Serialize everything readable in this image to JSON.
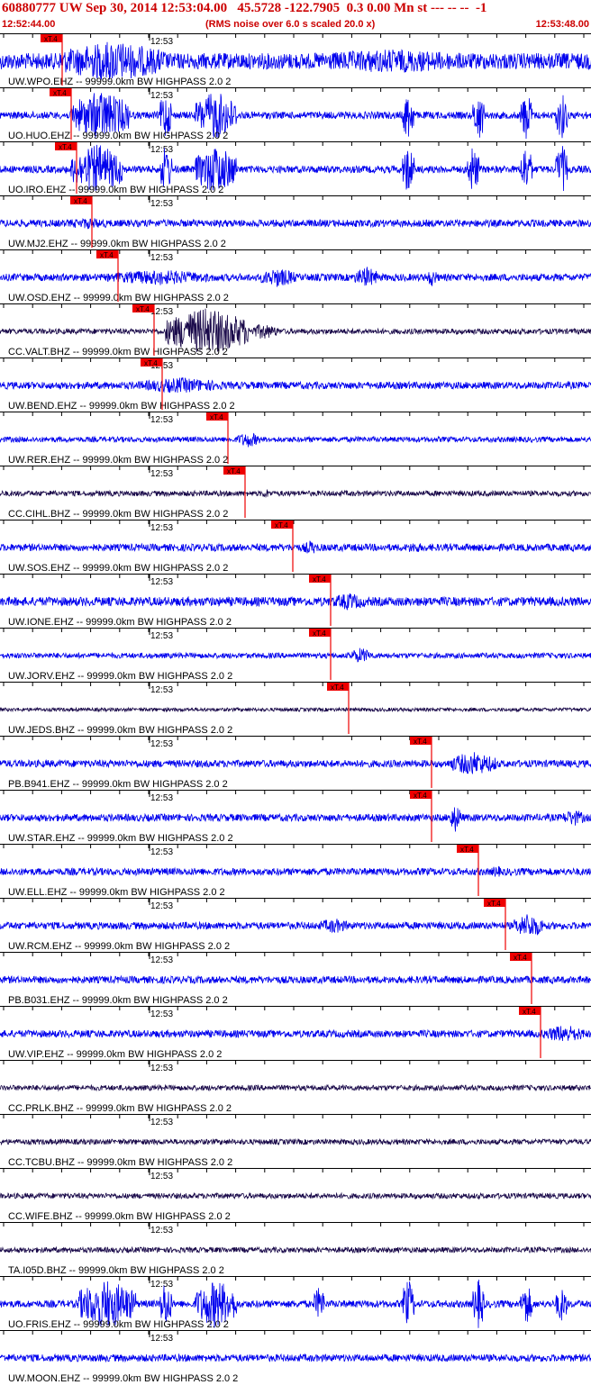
{
  "header": {
    "title": "60880777 UW Sep 30, 2014 12:53:04.00   45.5728 -122.7905  0.3 0.00 Mn st --- -- --  -1",
    "start_time": "12:52:44.00",
    "rms_note": "(RMS noise over 6.0 s scaled 20.0 x)",
    "end_time": "12:53:48.00",
    "minute_label": "12:53",
    "pick_label": "xT.4"
  },
  "colors": {
    "header_text": "#cc0000",
    "trace_blue": "#0000ee",
    "trace_dark": "#1a0a4a",
    "pick": "#ee0000",
    "axis": "#000000"
  },
  "traces": [
    {
      "label": "UW.WPO.EHZ -- 99999.0km BW  HIGHPASS  2.0  2",
      "pick": 0.105,
      "color": "blue",
      "amp": 9,
      "bursts": [
        [
          0.1,
          0.28,
          2.6
        ],
        [
          0.47,
          0.85,
          1.5
        ]
      ]
    },
    {
      "label": "UO.HUO.EHZ -- 99999.0km BW  HIGHPASS  2.0  2",
      "pick": 0.12,
      "color": "blue",
      "amp": 4,
      "bursts": [
        [
          0.12,
          0.22,
          7
        ],
        [
          0.27,
          0.29,
          7
        ],
        [
          0.33,
          0.4,
          7
        ],
        [
          0.68,
          0.7,
          7
        ],
        [
          0.8,
          0.82,
          7
        ],
        [
          0.88,
          0.9,
          7
        ],
        [
          0.94,
          0.96,
          7
        ]
      ]
    },
    {
      "label": "UO.IRO.EHZ -- 99999.0km BW  HIGHPASS  2.0  2",
      "pick": 0.13,
      "color": "blue",
      "amp": 4,
      "bursts": [
        [
          0.12,
          0.21,
          7
        ],
        [
          0.27,
          0.29,
          7
        ],
        [
          0.33,
          0.4,
          7
        ],
        [
          0.68,
          0.7,
          7
        ],
        [
          0.79,
          0.81,
          7
        ],
        [
          0.88,
          0.9,
          7
        ],
        [
          0.94,
          0.96,
          7
        ]
      ]
    },
    {
      "label": "UW.MJ2.EHZ -- 99999.0km BW  HIGHPASS  2.0  2",
      "pick": 0.155,
      "color": "blue",
      "amp": 4,
      "bursts": [
        [
          0.1,
          0.2,
          1.6
        ]
      ]
    },
    {
      "label": "UW.OSD.EHZ -- 99999.0km BW  HIGHPASS  2.0  2",
      "pick": 0.2,
      "color": "blue",
      "amp": 4,
      "bursts": [
        [
          0.18,
          0.36,
          2.2
        ],
        [
          0.44,
          0.5,
          2.8
        ],
        [
          0.6,
          0.64,
          3.0
        ],
        [
          0.72,
          0.74,
          2.6
        ]
      ]
    },
    {
      "label": "CC.VALT.BHZ -- 99999.0km BW  HIGHPASS  2.0  2",
      "pick": 0.26,
      "color": "dark",
      "amp": 3,
      "bursts": [
        [
          0.28,
          0.42,
          9
        ],
        [
          0.42,
          0.47,
          3
        ]
      ]
    },
    {
      "label": "UW.BEND.EHZ -- 99999.0km BW  HIGHPASS  2.0  2",
      "pick": 0.275,
      "color": "blue",
      "amp": 4,
      "bursts": [
        [
          0.23,
          0.38,
          2.2
        ]
      ]
    },
    {
      "label": "UW.RER.EHZ -- 99999.0km BW  HIGHPASS  2.0  2",
      "pick": 0.385,
      "color": "blue",
      "amp": 3,
      "bursts": [
        [
          0.4,
          0.44,
          3.0
        ]
      ]
    },
    {
      "label": "CC.CIHL.BHZ -- 99999.0km BW  HIGHPASS  2.0  2",
      "pick": 0.415,
      "color": "dark",
      "amp": 3,
      "bursts": [
        [
          0.44,
          0.46,
          1.8
        ]
      ]
    },
    {
      "label": "UW.SOS.EHZ -- 99999.0km BW  HIGHPASS  2.0  2",
      "pick": 0.495,
      "color": "blue",
      "amp": 4,
      "bursts": [
        [
          0.51,
          0.54,
          2.0
        ],
        [
          0.68,
          0.72,
          1.6
        ]
      ]
    },
    {
      "label": "UW.IONE.EHZ -- 99999.0km BW  HIGHPASS  2.0  2",
      "pick": 0.56,
      "color": "blue",
      "amp": 5,
      "bursts": [
        [
          0.56,
          0.62,
          2.0
        ]
      ]
    },
    {
      "label": "UW.JORV.EHZ -- 99999.0km BW  HIGHPASS  2.0  2",
      "pick": 0.56,
      "color": "blue",
      "amp": 3,
      "bursts": [
        [
          0.59,
          0.63,
          3.0
        ]
      ]
    },
    {
      "label": "UW.JEDS.BHZ -- 99999.0km BW  HIGHPASS  2.0  2",
      "pick": 0.59,
      "color": "dark",
      "amp": 2,
      "bursts": []
    },
    {
      "label": "PB.B941.EHZ -- 99999.0km BW  HIGHPASS  2.0  2",
      "pick": 0.73,
      "color": "blue",
      "amp": 4,
      "bursts": [
        [
          0.76,
          0.84,
          3.4
        ]
      ]
    },
    {
      "label": "UW.STAR.EHZ -- 99999.0km BW  HIGHPASS  2.0  2",
      "pick": 0.73,
      "color": "blue",
      "amp": 4,
      "bursts": [
        [
          0.76,
          0.78,
          4.0
        ],
        [
          0.95,
          0.99,
          2.4
        ]
      ]
    },
    {
      "label": "UW.ELL.EHZ -- 99999.0km BW  HIGHPASS  2.0  2",
      "pick": 0.81,
      "color": "blue",
      "amp": 4,
      "bursts": [
        [
          0.83,
          0.85,
          1.8
        ]
      ]
    },
    {
      "label": "UW.RCM.EHZ -- 99999.0km BW  HIGHPASS  2.0  2",
      "pick": 0.855,
      "color": "blue",
      "amp": 4,
      "bursts": [
        [
          0.54,
          0.59,
          2.2
        ],
        [
          0.87,
          0.92,
          3.6
        ]
      ]
    },
    {
      "label": "PB.B031.EHZ -- 99999.0km BW  HIGHPASS  2.0  2",
      "pick": 0.9,
      "color": "blue",
      "amp": 4,
      "bursts": []
    },
    {
      "label": "UW.VIP.EHZ -- 99999.0km BW  HIGHPASS  2.0  2",
      "pick": 0.915,
      "color": "blue",
      "amp": 4,
      "bursts": [
        [
          0.92,
          0.99,
          2.6
        ]
      ]
    },
    {
      "label": "CC.PRLK.BHZ -- 99999.0km BW  HIGHPASS  2.0  2",
      "pick": null,
      "color": "dark",
      "amp": 3,
      "bursts": []
    },
    {
      "label": "CC.TCBU.BHZ -- 99999.0km BW  HIGHPASS  2.0  2",
      "pick": null,
      "color": "dark",
      "amp": 3,
      "bursts": []
    },
    {
      "label": "CC.WIFE.BHZ -- 99999.0km BW  HIGHPASS  2.0  2",
      "pick": null,
      "color": "dark",
      "amp": 3,
      "bursts": []
    },
    {
      "label": "TA.I05D.BHZ -- 99999.0km BW  HIGHPASS  2.0  2",
      "pick": null,
      "color": "dark",
      "amp": 3,
      "bursts": []
    },
    {
      "label": "UO.FRIS.EHZ -- 99999.0km BW  HIGHPASS  2.0  2",
      "pick": null,
      "color": "blue",
      "amp": 4,
      "bursts": [
        [
          0.13,
          0.23,
          7
        ],
        [
          0.27,
          0.29,
          7
        ],
        [
          0.33,
          0.4,
          7
        ],
        [
          0.53,
          0.55,
          5
        ],
        [
          0.68,
          0.7,
          7
        ],
        [
          0.8,
          0.82,
          7
        ],
        [
          0.88,
          0.9,
          6
        ],
        [
          0.94,
          0.96,
          5
        ]
      ]
    },
    {
      "label": "UW.MOON.EHZ -- 99999.0km BW  HIGHPASS  2.0  2",
      "pick": null,
      "color": "blue",
      "amp": 4,
      "bursts": []
    }
  ]
}
